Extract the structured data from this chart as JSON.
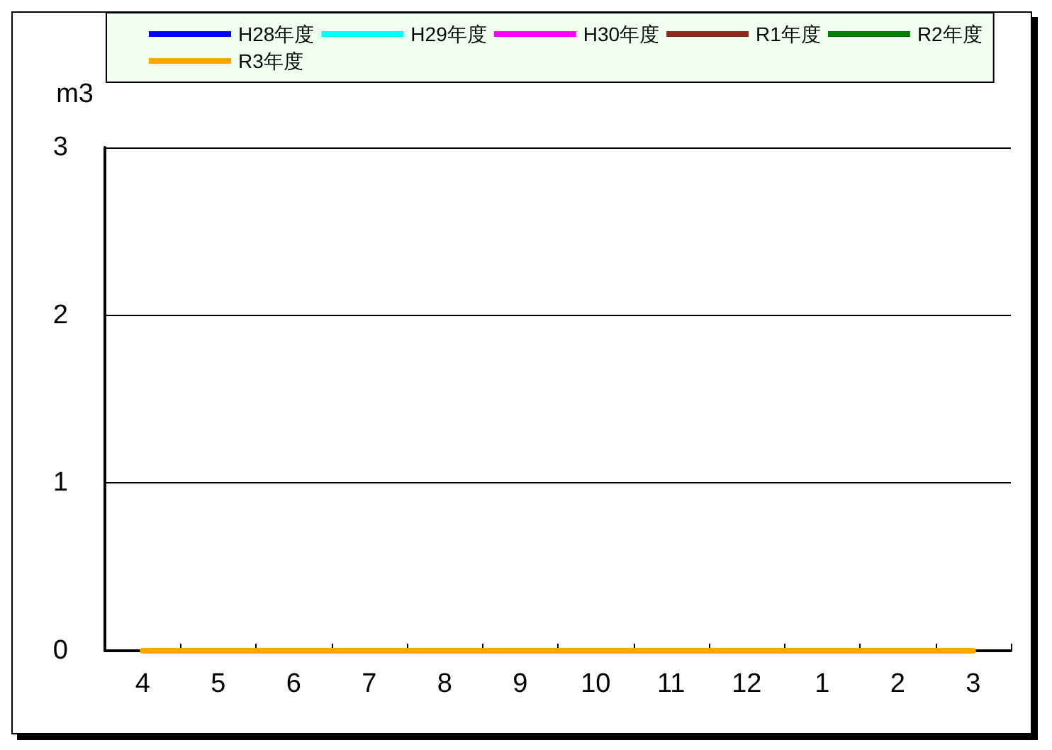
{
  "chart_data": {
    "type": "line",
    "ylabel": "m3",
    "categories": [
      "4",
      "5",
      "6",
      "7",
      "8",
      "9",
      "10",
      "11",
      "12",
      "1",
      "2",
      "3"
    ],
    "series": [
      {
        "name": "H28年度",
        "color": "#0000ff",
        "values": [
          null,
          null,
          null,
          null,
          null,
          null,
          null,
          null,
          null,
          null,
          null,
          null
        ]
      },
      {
        "name": "H29年度",
        "color": "#00ffff",
        "values": [
          null,
          null,
          null,
          null,
          null,
          null,
          null,
          null,
          null,
          null,
          null,
          null
        ]
      },
      {
        "name": "H30年度",
        "color": "#ff00ff",
        "values": [
          null,
          null,
          null,
          null,
          null,
          null,
          null,
          null,
          null,
          null,
          null,
          null
        ]
      },
      {
        "name": "R1年度",
        "color": "#8b2a1a",
        "values": [
          null,
          null,
          null,
          null,
          null,
          null,
          null,
          null,
          null,
          null,
          null,
          null
        ]
      },
      {
        "name": "R2年度",
        "color": "#008000",
        "values": [
          null,
          null,
          null,
          null,
          null,
          null,
          null,
          null,
          null,
          null,
          null,
          null
        ]
      },
      {
        "name": "R3年度",
        "color": "#ffa500",
        "values": [
          0,
          0,
          0,
          0,
          0,
          0,
          0,
          0,
          0,
          0,
          0,
          0
        ]
      }
    ],
    "ylim": [
      0,
      3
    ],
    "yticks": [
      0,
      1,
      2,
      3
    ],
    "grid": "y",
    "legend": "top",
    "marker": "none",
    "line_style": "solid"
  }
}
